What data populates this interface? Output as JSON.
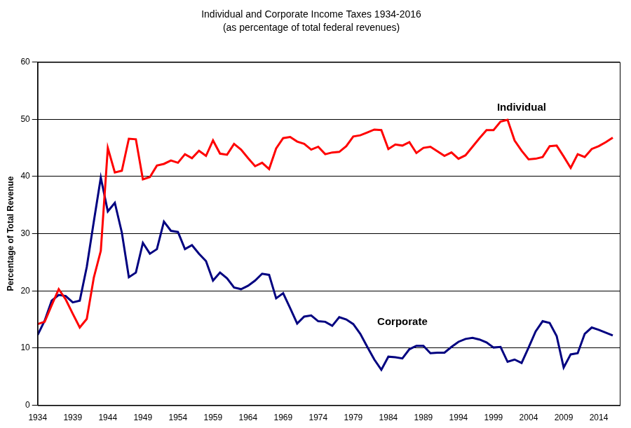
{
  "chart_data": {
    "type": "line",
    "title": "Individual and Corporate Income Taxes 1934-2016",
    "subtitle": "(as percentage of total federal revenues)",
    "y_label": "Percentage of Total Revenue",
    "x": [
      1934,
      1935,
      1936,
      1937,
      1938,
      1939,
      1940,
      1941,
      1942,
      1943,
      1944,
      1945,
      1946,
      1947,
      1948,
      1949,
      1950,
      1951,
      1952,
      1953,
      1954,
      1955,
      1956,
      1957,
      1958,
      1959,
      1960,
      1961,
      1962,
      1963,
      1964,
      1965,
      1966,
      1967,
      1968,
      1969,
      1970,
      1971,
      1972,
      1973,
      1974,
      1975,
      1976,
      1977,
      1978,
      1979,
      1980,
      1981,
      1982,
      1983,
      1984,
      1985,
      1986,
      1987,
      1988,
      1989,
      1990,
      1991,
      1992,
      1993,
      1994,
      1995,
      1996,
      1997,
      1998,
      1999,
      2000,
      2001,
      2002,
      2003,
      2004,
      2005,
      2006,
      2007,
      2008,
      2009,
      2010,
      2011,
      2012,
      2013,
      2014,
      2015,
      2016
    ],
    "series": [
      {
        "name": "Individual",
        "color": "#ff0000",
        "values": [
          14.2,
          14.6,
          17.5,
          20.3,
          18.5,
          16.0,
          13.6,
          15.1,
          22.3,
          27.0,
          45.0,
          40.7,
          41.0,
          46.6,
          46.5,
          39.5,
          39.9,
          41.9,
          42.2,
          42.8,
          42.4,
          43.9,
          43.2,
          44.5,
          43.6,
          46.3,
          44.0,
          43.8,
          45.7,
          44.7,
          43.2,
          41.8,
          42.4,
          41.3,
          44.9,
          46.7,
          46.9,
          46.1,
          45.7,
          44.7,
          45.2,
          43.9,
          44.2,
          44.3,
          45.3,
          47.0,
          47.2,
          47.7,
          48.2,
          48.1,
          44.8,
          45.6,
          45.4,
          46.0,
          44.1,
          45.0,
          45.2,
          44.4,
          43.6,
          44.2,
          43.1,
          43.7,
          45.2,
          46.7,
          48.1,
          48.1,
          49.6,
          49.9,
          46.3,
          44.5,
          43.0,
          43.1,
          43.4,
          45.3,
          45.4,
          43.5,
          41.5,
          43.9,
          43.4,
          44.8,
          45.3,
          46.0,
          46.8
        ]
      },
      {
        "name": "Corporate",
        "color": "#000080",
        "values": [
          12.3,
          14.8,
          18.3,
          19.3,
          19.1,
          18.0,
          18.3,
          24.2,
          32.1,
          39.8,
          33.9,
          35.4,
          30.2,
          22.4,
          23.2,
          28.4,
          26.5,
          27.3,
          32.1,
          30.5,
          30.3,
          27.3,
          28.0,
          26.5,
          25.2,
          21.8,
          23.2,
          22.2,
          20.6,
          20.3,
          20.9,
          21.8,
          23.0,
          22.8,
          18.7,
          19.6,
          17.0,
          14.3,
          15.5,
          15.7,
          14.7,
          14.6,
          13.9,
          15.4,
          15.0,
          14.2,
          12.5,
          10.2,
          8.0,
          6.2,
          8.5,
          8.4,
          8.2,
          9.8,
          10.4,
          10.4,
          9.1,
          9.2,
          9.2,
          10.2,
          11.1,
          11.6,
          11.8,
          11.5,
          11.0,
          10.1,
          10.2,
          7.6,
          8.0,
          7.4,
          10.1,
          12.9,
          14.7,
          14.4,
          12.1,
          6.6,
          8.9,
          9.1,
          12.5,
          13.6,
          13.2,
          12.7,
          12.2
        ]
      }
    ],
    "annotations": [
      {
        "text": "Individual",
        "x": 2003,
        "y": 52
      },
      {
        "text": "Corporate",
        "x": 1986,
        "y": 14.5
      }
    ],
    "xlim": [
      1934,
      2017
    ],
    "xticks": [
      1934,
      1939,
      1944,
      1949,
      1954,
      1959,
      1964,
      1969,
      1974,
      1979,
      1984,
      1989,
      1994,
      1999,
      2004,
      2009,
      2014
    ],
    "ylim": [
      0,
      60
    ],
    "yticks": [
      0,
      10,
      20,
      30,
      40,
      50,
      60
    ],
    "grid": true
  }
}
